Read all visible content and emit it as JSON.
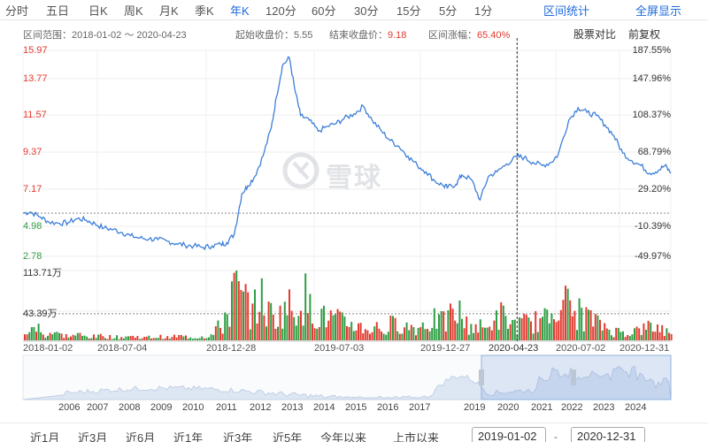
{
  "tabs": {
    "items": [
      "分时",
      "五日",
      "日K",
      "周K",
      "月K",
      "季K",
      "年K",
      "120分",
      "60分",
      "30分",
      "15分",
      "5分",
      "1分"
    ],
    "selected": "年K",
    "interval_stats": "区间统计",
    "fullscreen": "全屏显示"
  },
  "info": {
    "range_label": "区间范围：",
    "range_value": "2018-01-02 ～ 2020-04-23",
    "start_label": "起始收盘价：",
    "start_value": "5.55",
    "end_label": "结束收盘价：",
    "end_value": "9.18",
    "change_label": "区间涨幅：",
    "change_value": "65.40%",
    "compare": "股票对比",
    "adjust": "前复权"
  },
  "colors": {
    "up": "#e23b30",
    "down": "#2f9e44",
    "line": "#3d7fd9",
    "accent": "#1e6ad9"
  },
  "chart_data": [
    {
      "type": "line",
      "title": "",
      "y_left_ticks": [
        "15.97",
        "13.77",
        "11.57",
        "9.37",
        "7.17",
        "4.98",
        "2.78"
      ],
      "y_right_ticks": [
        "187.55%",
        "147.96%",
        "108.37%",
        "68.79%",
        "29.20%",
        "-10.39%",
        "-49.97%"
      ],
      "ylim": [
        2.78,
        15.97
      ],
      "x_labels": [
        "2018-01-02",
        "2018-07-04",
        "2018-12-28",
        "2019-07-03",
        "2019-12-27",
        "2020-04-23",
        "2020-07-02",
        "2020-12-31"
      ],
      "crosshair_date": "2020-04-23",
      "baseline_value": 5.55,
      "series": [
        {
          "x": [
            "2018-01-02",
            "2018-01-15",
            "2018-02-01",
            "2018-02-15",
            "2018-03-05",
            "2018-03-20",
            "2018-04-05",
            "2018-04-20",
            "2018-05-05",
            "2018-05-20",
            "2018-06-05",
            "2018-06-20",
            "2018-07-04",
            "2018-07-20",
            "2018-08-05",
            "2018-08-20",
            "2018-09-05",
            "2018-09-20",
            "2018-10-05",
            "2018-10-20",
            "2018-11-05",
            "2018-11-20",
            "2018-12-05",
            "2018-12-15",
            "2018-12-28",
            "2019-01-10",
            "2019-01-20",
            "2019-02-01",
            "2019-02-15",
            "2019-03-01",
            "2019-03-10",
            "2019-03-20",
            "2019-04-01",
            "2019-04-10",
            "2019-04-20",
            "2019-05-05",
            "2019-05-20",
            "2019-06-05",
            "2019-06-20",
            "2019-07-03",
            "2019-07-20",
            "2019-08-05",
            "2019-08-20",
            "2019-09-05",
            "2019-09-20",
            "2019-10-05",
            "2019-10-20",
            "2019-11-05",
            "2019-11-20",
            "2019-12-05",
            "2019-12-20",
            "2019-12-27",
            "2020-01-10",
            "2020-01-20",
            "2020-02-05",
            "2020-02-20",
            "2020-03-05",
            "2020-03-20",
            "2020-04-05",
            "2020-04-23",
            "2020-05-05",
            "2020-05-20",
            "2020-06-05",
            "2020-06-20",
            "2020-07-02",
            "2020-07-20",
            "2020-08-05",
            "2020-08-20",
            "2020-09-05",
            "2020-09-20",
            "2020-10-05",
            "2020-10-20",
            "2020-11-05",
            "2020-11-20",
            "2020-12-05",
            "2020-12-20",
            "2020-12-31",
            "2021-01-10"
          ],
          "values": [
            5.55,
            5.62,
            5.3,
            4.98,
            4.9,
            4.95,
            5.2,
            5.1,
            4.85,
            4.6,
            4.5,
            4.3,
            4.1,
            3.95,
            3.9,
            3.85,
            3.75,
            3.6,
            3.5,
            3.45,
            3.35,
            3.45,
            3.55,
            3.65,
            4.2,
            6.8,
            7.3,
            7.9,
            9.2,
            11.0,
            13.0,
            15.0,
            15.5,
            13.5,
            11.8,
            11.5,
            10.8,
            11.1,
            11.3,
            11.6,
            11.9,
            12.4,
            11.5,
            10.8,
            10.2,
            9.8,
            9.2,
            8.6,
            8.2,
            7.6,
            7.3,
            7.2,
            7.4,
            8.0,
            7.7,
            6.4,
            7.9,
            8.2,
            8.7,
            9.18,
            9.1,
            8.8,
            8.6,
            8.8,
            9.3,
            11.5,
            12.3,
            12.0,
            11.8,
            11.2,
            10.5,
            9.4,
            8.9,
            8.6,
            8.1,
            8.3,
            8.6,
            8.1
          ]
        }
      ]
    },
    {
      "type": "bar",
      "title": "",
      "y_ticks": [
        "113.71万",
        "43.39万"
      ],
      "ylim": [
        0,
        113.71
      ],
      "volume_levels": [
        20,
        30,
        14,
        18,
        12,
        10,
        12,
        9,
        8,
        11,
        8,
        7,
        9,
        8,
        6,
        7,
        8,
        6,
        9,
        8,
        7,
        9,
        12,
        28,
        60,
        110,
        85,
        70,
        90,
        60,
        55,
        75,
        65,
        95,
        70,
        60,
        50,
        45,
        40,
        38,
        30,
        25,
        30,
        22,
        35,
        40,
        30,
        28,
        38,
        45,
        40,
        55,
        60,
        35,
        30,
        25,
        45,
        55,
        40,
        35,
        38,
        42,
        45,
        60,
        110,
        80,
        60,
        55,
        45,
        35,
        25,
        20,
        18,
        22,
        25,
        30,
        28,
        20
      ]
    }
  ],
  "navigator": {
    "years": [
      "2006",
      "2007",
      "2008",
      "2009",
      "2010",
      "2011",
      "2012",
      "2013",
      "2014",
      "2015",
      "2016",
      "2017",
      "2019",
      "2020",
      "2021",
      "2022",
      "2023",
      "2024"
    ]
  },
  "range_bar": {
    "buttons": [
      "近1月",
      "近3月",
      "近6月",
      "近1年",
      "近3年",
      "近5年",
      "今年以来",
      "上市以来"
    ],
    "start_date": "2019-01-02",
    "end_date": "2020-12-31",
    "separator": "-"
  },
  "watermark": {
    "text": "雪球"
  }
}
